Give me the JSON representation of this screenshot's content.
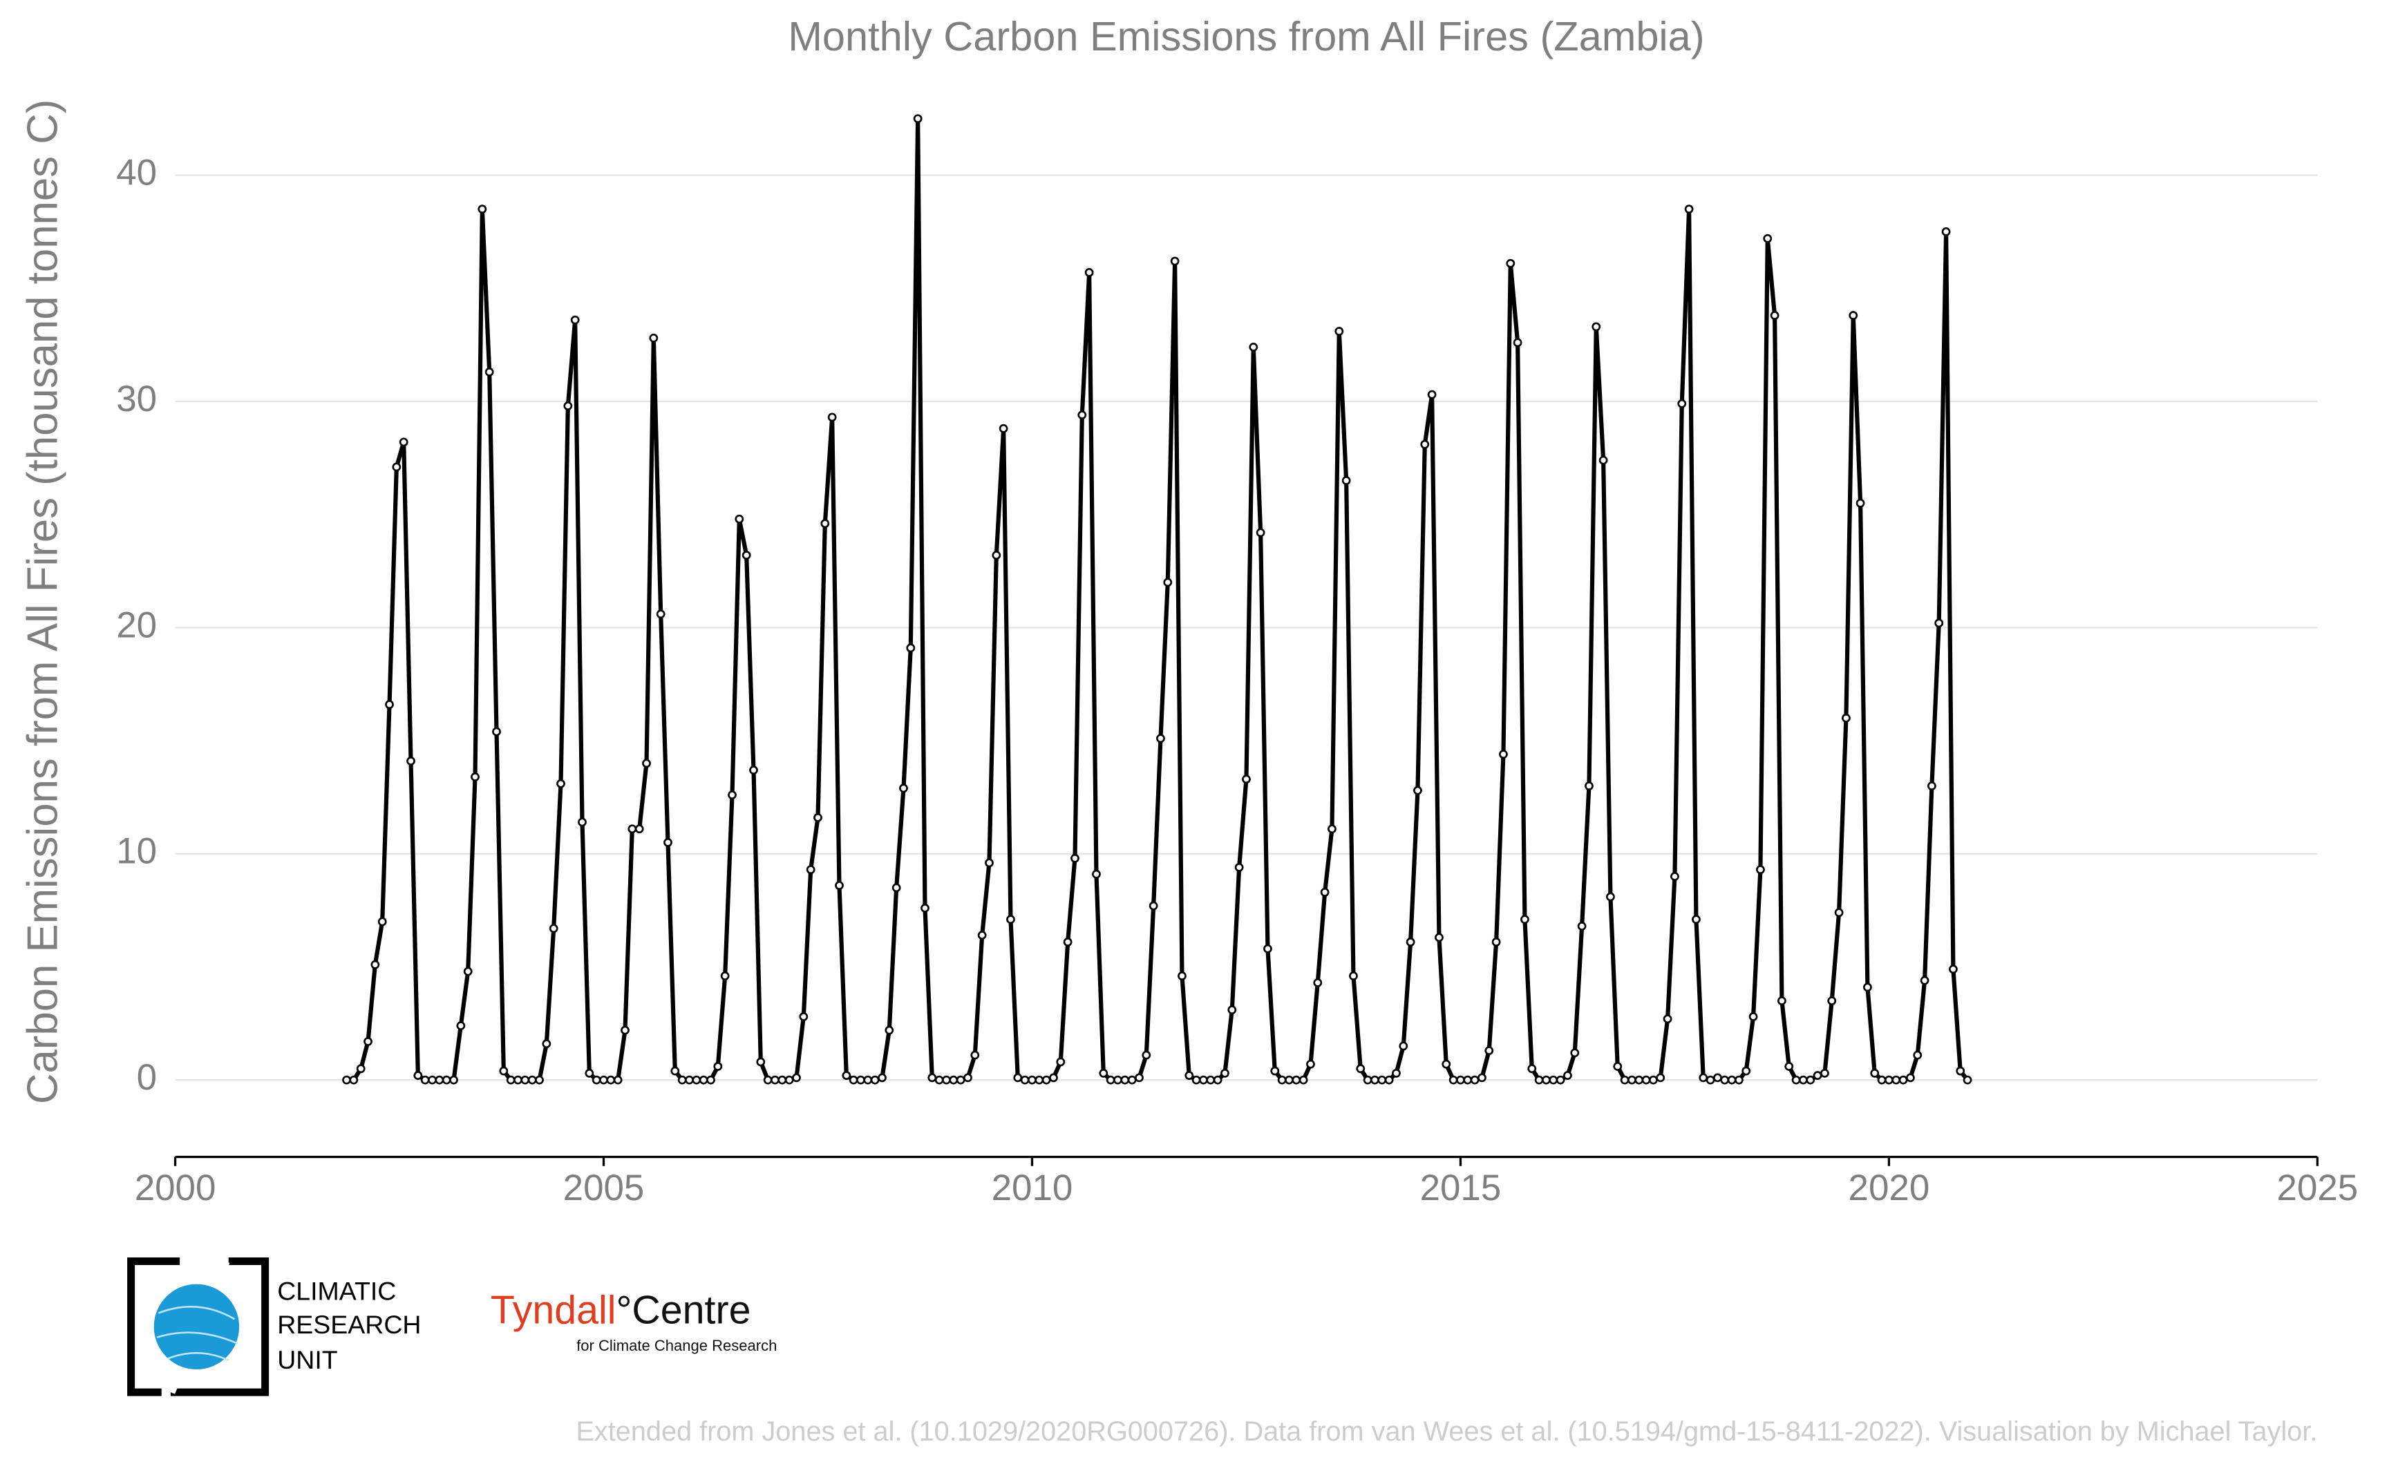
{
  "chart_data": {
    "type": "line",
    "title": "Monthly Carbon Emissions from All Fires (Zambia)",
    "y_label": "Carbon Emissions from All Fires (thousand tonnes C)",
    "color": "#000000",
    "grid": true,
    "xlim": [
      2000,
      2025
    ],
    "xticks": [
      2000,
      2005,
      2010,
      2015,
      2020,
      2025
    ],
    "ylim": [
      -3.4,
      44
    ],
    "yticks": [
      0,
      10,
      20,
      30,
      40
    ],
    "x": [
      2002,
      2002.0833,
      2002.1667,
      2002.25,
      2002.3333,
      2002.4167,
      2002.5,
      2002.5833,
      2002.6667,
      2002.75,
      2002.8333,
      2002.9167,
      2003,
      2003.0833,
      2003.1667,
      2003.25,
      2003.3333,
      2003.4167,
      2003.5,
      2003.5833,
      2003.6667,
      2003.75,
      2003.8333,
      2003.9167,
      2004,
      2004.0833,
      2004.1667,
      2004.25,
      2004.3333,
      2004.4167,
      2004.5,
      2004.5833,
      2004.6667,
      2004.75,
      2004.8333,
      2004.9167,
      2005,
      2005.0833,
      2005.1667,
      2005.25,
      2005.3333,
      2005.4167,
      2005.5,
      2005.5833,
      2005.6667,
      2005.75,
      2005.8333,
      2005.9167,
      2006,
      2006.0833,
      2006.1667,
      2006.25,
      2006.3333,
      2006.4167,
      2006.5,
      2006.5833,
      2006.6667,
      2006.75,
      2006.8333,
      2006.9167,
      2007,
      2007.0833,
      2007.1667,
      2007.25,
      2007.3333,
      2007.4167,
      2007.5,
      2007.5833,
      2007.6667,
      2007.75,
      2007.8333,
      2007.9167,
      2008,
      2008.0833,
      2008.1667,
      2008.25,
      2008.3333,
      2008.4167,
      2008.5,
      2008.5833,
      2008.6667,
      2008.75,
      2008.8333,
      2008.9167,
      2009,
      2009.0833,
      2009.1667,
      2009.25,
      2009.3333,
      2009.4167,
      2009.5,
      2009.5833,
      2009.6667,
      2009.75,
      2009.8333,
      2009.9167,
      2010,
      2010.0833,
      2010.1667,
      2010.25,
      2010.3333,
      2010.4167,
      2010.5,
      2010.5833,
      2010.6667,
      2010.75,
      2010.8333,
      2010.9167,
      2011,
      2011.0833,
      2011.1667,
      2011.25,
      2011.3333,
      2011.4167,
      2011.5,
      2011.5833,
      2011.6667,
      2011.75,
      2011.8333,
      2011.9167,
      2012,
      2012.0833,
      2012.1667,
      2012.25,
      2012.3333,
      2012.4167,
      2012.5,
      2012.5833,
      2012.6667,
      2012.75,
      2012.8333,
      2012.9167,
      2013,
      2013.0833,
      2013.1667,
      2013.25,
      2013.3333,
      2013.4167,
      2013.5,
      2013.5833,
      2013.6667,
      2013.75,
      2013.8333,
      2013.9167,
      2014,
      2014.0833,
      2014.1667,
      2014.25,
      2014.3333,
      2014.4167,
      2014.5,
      2014.5833,
      2014.6667,
      2014.75,
      2014.8333,
      2014.9167,
      2015,
      2015.0833,
      2015.1667,
      2015.25,
      2015.3333,
      2015.4167,
      2015.5,
      2015.5833,
      2015.6667,
      2015.75,
      2015.8333,
      2015.9167,
      2016,
      2016.0833,
      2016.1667,
      2016.25,
      2016.3333,
      2016.4167,
      2016.5,
      2016.5833,
      2016.6667,
      2016.75,
      2016.8333,
      2016.9167,
      2017,
      2017.0833,
      2017.1667,
      2017.25,
      2017.3333,
      2017.4167,
      2017.5,
      2017.5833,
      2017.6667,
      2017.75,
      2017.8333,
      2017.9167,
      2018,
      2018.0833,
      2018.1667,
      2018.25,
      2018.3333,
      2018.4167,
      2018.5,
      2018.5833,
      2018.6667,
      2018.75,
      2018.8333,
      2018.9167,
      2019,
      2019.0833,
      2019.1667,
      2019.25,
      2019.3333,
      2019.4167,
      2019.5,
      2019.5833,
      2019.6667,
      2019.75,
      2019.8333,
      2019.9167,
      2020,
      2020.0833,
      2020.1667,
      2020.25,
      2020.3333,
      2020.4167,
      2020.5,
      2020.5833,
      2020.6667,
      2020.75,
      2020.8333,
      2020.9167
    ],
    "values": [
      0,
      0,
      0.5,
      1.7,
      5.1,
      7.0,
      16.6,
      27.1,
      28.2,
      14.1,
      0.2,
      0,
      0,
      0,
      0,
      0,
      2.4,
      4.8,
      13.4,
      38.5,
      31.3,
      15.4,
      0.4,
      0,
      0,
      0,
      0,
      0,
      1.6,
      6.7,
      13.1,
      29.8,
      33.6,
      11.4,
      0.3,
      0,
      0,
      0,
      0,
      2.2,
      11.1,
      11.1,
      14.0,
      32.8,
      20.6,
      10.5,
      0.4,
      0,
      0,
      0,
      0,
      0,
      0.6,
      4.6,
      12.6,
      24.8,
      23.2,
      13.7,
      0.8,
      0,
      0,
      0,
      0,
      0.1,
      2.8,
      9.3,
      11.6,
      24.6,
      29.3,
      8.6,
      0.2,
      0,
      0,
      0,
      0,
      0.1,
      2.2,
      8.5,
      12.9,
      19.1,
      42.5,
      7.6,
      0.1,
      0,
      0,
      0,
      0,
      0.1,
      1.1,
      6.4,
      9.6,
      23.2,
      28.8,
      7.1,
      0.1,
      0,
      0,
      0,
      0,
      0.1,
      0.8,
      6.1,
      9.8,
      29.4,
      35.7,
      9.1,
      0.3,
      0,
      0,
      0,
      0,
      0.1,
      1.1,
      7.7,
      15.1,
      22.0,
      36.2,
      4.6,
      0.2,
      0,
      0,
      0,
      0,
      0.3,
      3.1,
      9.4,
      13.3,
      32.4,
      24.2,
      5.8,
      0.4,
      0,
      0,
      0,
      0,
      0.7,
      4.3,
      8.3,
      11.1,
      33.1,
      26.5,
      4.6,
      0.5,
      0,
      0,
      0,
      0,
      0.3,
      1.5,
      6.1,
      12.8,
      28.1,
      30.3,
      6.3,
      0.7,
      0,
      0,
      0,
      0,
      0.1,
      1.3,
      6.1,
      14.4,
      36.1,
      32.6,
      7.1,
      0.5,
      0,
      0,
      0,
      0,
      0.2,
      1.2,
      6.8,
      13.0,
      33.3,
      27.4,
      8.1,
      0.6,
      0,
      0,
      0,
      0,
      0,
      0.1,
      2.7,
      9.0,
      29.9,
      38.5,
      7.1,
      0.1,
      0,
      0.1,
      0,
      0,
      0,
      0.4,
      2.8,
      9.3,
      37.2,
      33.8,
      3.5,
      0.6,
      0,
      0,
      0,
      0.2,
      0.3,
      3.5,
      7.4,
      16.0,
      33.8,
      25.5,
      4.1,
      0.3,
      0,
      0,
      0,
      0,
      0.1,
      1.1,
      4.4,
      13.0,
      20.2,
      37.5,
      4.9,
      0.4,
      0
    ]
  },
  "logos": {
    "cru": [
      "CLIMATIC",
      "RESEARCH",
      "UNIT"
    ],
    "tyndall": {
      "name": "Tyndall",
      "suffix": "°Centre",
      "tagline": "for Climate Change Research"
    }
  },
  "footer": "Extended from Jones et al. (10.1029/2020RG000726). Data from van Wees et al. (10.5194/gmd-15-8411-2022). Visualisation by Michael Taylor."
}
